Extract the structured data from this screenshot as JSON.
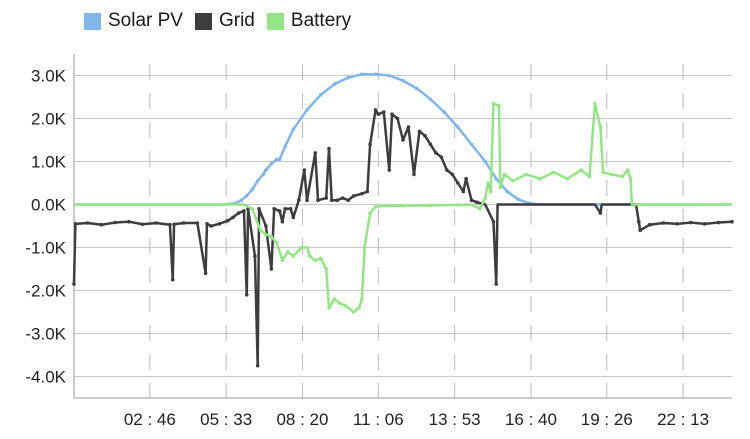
{
  "chart_data": {
    "type": "line",
    "legend_position": "top-left",
    "grid": true,
    "x_tick_labels": [
      "02 : 46",
      "05 : 33",
      "08 : 20",
      "11 : 06",
      "13 : 53",
      "16 : 40",
      "19 : 26",
      "22 : 13"
    ],
    "y_tick_labels": [
      "3.0K",
      "2.0K",
      "1.0K",
      "0.0K",
      "-1.0K",
      "-2.0K",
      "-3.0K",
      "-4.0K"
    ],
    "xlim_hours": [
      0,
      24
    ],
    "ylim": [
      -4500,
      3500
    ],
    "series": [
      {
        "name": "Solar PV",
        "color": "#7fb6ec",
        "points": [
          [
            0,
            0
          ],
          [
            5.5,
            0
          ],
          [
            5.9,
            30
          ],
          [
            6.1,
            100
          ],
          [
            6.3,
            200
          ],
          [
            6.5,
            350
          ],
          [
            6.7,
            550
          ],
          [
            6.9,
            700
          ],
          [
            7.0,
            800
          ],
          [
            7.2,
            950
          ],
          [
            7.4,
            1050
          ],
          [
            7.5,
            1050
          ],
          [
            7.7,
            1350
          ],
          [
            8.0,
            1750
          ],
          [
            8.5,
            2200
          ],
          [
            9.0,
            2550
          ],
          [
            9.5,
            2800
          ],
          [
            10.0,
            2950
          ],
          [
            10.5,
            3030
          ],
          [
            11.0,
            3030
          ],
          [
            11.5,
            3000
          ],
          [
            12.0,
            2880
          ],
          [
            12.5,
            2700
          ],
          [
            13.0,
            2450
          ],
          [
            13.5,
            2150
          ],
          [
            14.0,
            1800
          ],
          [
            14.5,
            1400
          ],
          [
            15.0,
            1000
          ],
          [
            15.4,
            600
          ],
          [
            15.8,
            300
          ],
          [
            16.2,
            120
          ],
          [
            16.6,
            30
          ],
          [
            17.0,
            0
          ],
          [
            24,
            0
          ]
        ]
      },
      {
        "name": "Grid",
        "color": "#3d3d40",
        "points": [
          [
            0,
            -1850
          ],
          [
            0.05,
            -450
          ],
          [
            0.5,
            -430
          ],
          [
            1.0,
            -470
          ],
          [
            1.5,
            -420
          ],
          [
            2.0,
            -400
          ],
          [
            2.5,
            -460
          ],
          [
            3.0,
            -430
          ],
          [
            3.5,
            -470
          ],
          [
            3.6,
            -1750
          ],
          [
            3.65,
            -460
          ],
          [
            4.0,
            -430
          ],
          [
            4.5,
            -430
          ],
          [
            4.8,
            -1600
          ],
          [
            4.85,
            -450
          ],
          [
            5.0,
            -500
          ],
          [
            5.3,
            -450
          ],
          [
            5.6,
            -380
          ],
          [
            5.8,
            -300
          ],
          [
            6.0,
            -200
          ],
          [
            6.2,
            -150
          ],
          [
            6.3,
            -2100
          ],
          [
            6.35,
            -100
          ],
          [
            6.6,
            -1200
          ],
          [
            6.7,
            -3750
          ],
          [
            6.75,
            -100
          ],
          [
            7.0,
            -500
          ],
          [
            7.2,
            -1500
          ],
          [
            7.3,
            -100
          ],
          [
            7.5,
            -150
          ],
          [
            7.6,
            -400
          ],
          [
            7.7,
            -100
          ],
          [
            7.9,
            -100
          ],
          [
            8.0,
            -300
          ],
          [
            8.2,
            100
          ],
          [
            8.4,
            800
          ],
          [
            8.5,
            100
          ],
          [
            8.8,
            1200
          ],
          [
            8.9,
            100
          ],
          [
            9.2,
            150
          ],
          [
            9.3,
            1300
          ],
          [
            9.4,
            100
          ],
          [
            9.6,
            100
          ],
          [
            9.8,
            150
          ],
          [
            10.0,
            100
          ],
          [
            10.2,
            200
          ],
          [
            10.5,
            250
          ],
          [
            10.7,
            300
          ],
          [
            10.8,
            1400
          ],
          [
            11.0,
            2200
          ],
          [
            11.1,
            2100
          ],
          [
            11.3,
            2150
          ],
          [
            11.5,
            800
          ],
          [
            11.6,
            2100
          ],
          [
            11.8,
            2000
          ],
          [
            12.0,
            1500
          ],
          [
            12.2,
            1800
          ],
          [
            12.4,
            700
          ],
          [
            12.6,
            1700
          ],
          [
            12.8,
            1600
          ],
          [
            13.0,
            1400
          ],
          [
            13.2,
            1200
          ],
          [
            13.4,
            1100
          ],
          [
            13.6,
            800
          ],
          [
            13.8,
            700
          ],
          [
            14.0,
            500
          ],
          [
            14.2,
            300
          ],
          [
            14.3,
            600
          ],
          [
            14.5,
            100
          ],
          [
            14.7,
            50
          ],
          [
            15.0,
            0
          ],
          [
            15.3,
            -400
          ],
          [
            15.4,
            -1850
          ],
          [
            15.45,
            0
          ],
          [
            17.0,
            0
          ],
          [
            18.0,
            0
          ],
          [
            18.5,
            0
          ],
          [
            19.0,
            0
          ],
          [
            19.2,
            -200
          ],
          [
            19.25,
            0
          ],
          [
            20.5,
            0
          ],
          [
            20.6,
            -400
          ],
          [
            20.65,
            -600
          ],
          [
            21.0,
            -470
          ],
          [
            21.5,
            -430
          ],
          [
            22.0,
            -450
          ],
          [
            22.5,
            -420
          ],
          [
            23.0,
            -450
          ],
          [
            23.5,
            -420
          ],
          [
            24,
            -400
          ]
        ]
      },
      {
        "name": "Battery",
        "color": "#93e683",
        "points": [
          [
            0,
            0
          ],
          [
            6.2,
            0
          ],
          [
            6.5,
            -100
          ],
          [
            6.8,
            -600
          ],
          [
            7.0,
            -700
          ],
          [
            7.2,
            -750
          ],
          [
            7.4,
            -900
          ],
          [
            7.6,
            -1300
          ],
          [
            7.8,
            -1100
          ],
          [
            8.0,
            -1200
          ],
          [
            8.3,
            -1000
          ],
          [
            8.5,
            -1000
          ],
          [
            8.6,
            -1200
          ],
          [
            8.8,
            -1300
          ],
          [
            9.0,
            -1250
          ],
          [
            9.2,
            -1500
          ],
          [
            9.3,
            -2400
          ],
          [
            9.5,
            -2200
          ],
          [
            9.7,
            -2300
          ],
          [
            9.9,
            -2350
          ],
          [
            10.2,
            -2500
          ],
          [
            10.4,
            -2400
          ],
          [
            10.5,
            -2200
          ],
          [
            10.6,
            -1000
          ],
          [
            10.8,
            -200
          ],
          [
            11.0,
            -50
          ],
          [
            11.5,
            -30
          ],
          [
            12.0,
            -30
          ],
          [
            13.0,
            -20
          ],
          [
            14.0,
            -10
          ],
          [
            14.5,
            0
          ],
          [
            14.8,
            -100
          ],
          [
            15.0,
            150
          ],
          [
            15.1,
            500
          ],
          [
            15.2,
            300
          ],
          [
            15.3,
            2350
          ],
          [
            15.5,
            2300
          ],
          [
            15.55,
            400
          ],
          [
            15.7,
            700
          ],
          [
            16.0,
            550
          ],
          [
            16.5,
            700
          ],
          [
            17.0,
            600
          ],
          [
            17.5,
            750
          ],
          [
            18.0,
            600
          ],
          [
            18.5,
            800
          ],
          [
            18.8,
            650
          ],
          [
            19.0,
            2350
          ],
          [
            19.2,
            1800
          ],
          [
            19.3,
            750
          ],
          [
            19.6,
            700
          ],
          [
            20.0,
            650
          ],
          [
            20.2,
            800
          ],
          [
            20.3,
            600
          ],
          [
            20.35,
            0
          ],
          [
            24,
            0
          ]
        ]
      }
    ]
  }
}
